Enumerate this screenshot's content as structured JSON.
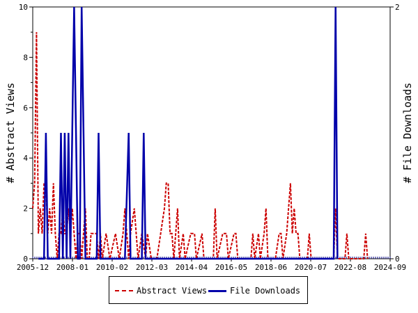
{
  "chart_data": {
    "type": "line",
    "x_tick_labels": [
      "2005-12",
      "2008-01",
      "2010-02",
      "2012-03",
      "2014-04",
      "2016-05",
      "2018-06",
      "2020-07",
      "2022-08",
      "2024-09"
    ],
    "y_left": {
      "label": "# Abstract Views",
      "range": [
        0,
        10
      ],
      "ticks": [
        "0",
        "2",
        "4",
        "6",
        "8",
        "10"
      ]
    },
    "y_right": {
      "label": "# File Downloads",
      "range": [
        0,
        2
      ],
      "ticks": [
        "0",
        "2"
      ]
    },
    "grid": false,
    "legend_placement": "bottom",
    "series": [
      {
        "name": "Abstract Views",
        "axis": "left",
        "color": "#cc0000",
        "style": "dashed",
        "points": [
          [
            2005.9,
            2
          ],
          [
            2006.0,
            3
          ],
          [
            2006.1,
            9
          ],
          [
            2006.2,
            1
          ],
          [
            2006.3,
            2
          ],
          [
            2006.4,
            1
          ],
          [
            2006.5,
            3
          ],
          [
            2006.6,
            3
          ],
          [
            2006.7,
            1
          ],
          [
            2006.8,
            2
          ],
          [
            2006.9,
            1
          ],
          [
            2007.0,
            3
          ],
          [
            2007.1,
            1
          ],
          [
            2007.2,
            0
          ],
          [
            2007.3,
            1
          ],
          [
            2007.4,
            1
          ],
          [
            2007.5,
            2
          ],
          [
            2007.6,
            1
          ],
          [
            2007.7,
            1
          ],
          [
            2007.8,
            2
          ],
          [
            2007.9,
            1
          ],
          [
            2008.0,
            2
          ],
          [
            2008.1,
            1
          ],
          [
            2008.2,
            0
          ],
          [
            2008.3,
            1
          ],
          [
            2008.4,
            1
          ],
          [
            2008.5,
            0
          ],
          [
            2008.6,
            1
          ],
          [
            2008.7,
            2
          ],
          [
            2008.8,
            0
          ],
          [
            2008.9,
            0
          ],
          [
            2009.0,
            1
          ],
          [
            2009.1,
            1
          ],
          [
            2009.2,
            1
          ],
          [
            2009.3,
            1
          ],
          [
            2009.4,
            0
          ],
          [
            2009.5,
            1
          ],
          [
            2009.6,
            0
          ],
          [
            2009.8,
            1
          ],
          [
            2010.0,
            0
          ],
          [
            2010.3,
            1
          ],
          [
            2010.5,
            0
          ],
          [
            2010.7,
            1
          ],
          [
            2010.8,
            2
          ],
          [
            2010.9,
            1
          ],
          [
            2011.0,
            0
          ],
          [
            2011.1,
            1
          ],
          [
            2011.3,
            2
          ],
          [
            2011.5,
            0
          ],
          [
            2011.7,
            1
          ],
          [
            2011.9,
            0
          ],
          [
            2012.0,
            1
          ],
          [
            2012.2,
            0
          ],
          [
            2012.5,
            0
          ],
          [
            2012.7,
            1
          ],
          [
            2012.9,
            2
          ],
          [
            2013.0,
            3
          ],
          [
            2013.1,
            3
          ],
          [
            2013.2,
            1
          ],
          [
            2013.3,
            1
          ],
          [
            2013.4,
            0
          ],
          [
            2013.5,
            1
          ],
          [
            2013.6,
            2
          ],
          [
            2013.7,
            0
          ],
          [
            2013.9,
            1
          ],
          [
            2014.0,
            0
          ],
          [
            2014.3,
            1
          ],
          [
            2014.5,
            1
          ],
          [
            2014.6,
            0
          ],
          [
            2014.9,
            1
          ],
          [
            2015.0,
            0
          ],
          [
            2015.5,
            0
          ],
          [
            2015.6,
            2
          ],
          [
            2015.7,
            0
          ],
          [
            2016.0,
            1
          ],
          [
            2016.2,
            1
          ],
          [
            2016.3,
            0
          ],
          [
            2016.6,
            1
          ],
          [
            2016.7,
            1
          ],
          [
            2016.8,
            0
          ],
          [
            2017.0,
            0
          ],
          [
            2017.5,
            0
          ],
          [
            2017.6,
            1
          ],
          [
            2017.7,
            0
          ],
          [
            2017.9,
            1
          ],
          [
            2018.0,
            0
          ],
          [
            2018.2,
            1
          ],
          [
            2018.3,
            2
          ],
          [
            2018.4,
            0
          ],
          [
            2018.8,
            0
          ],
          [
            2019.0,
            1
          ],
          [
            2019.1,
            1
          ],
          [
            2019.2,
            0
          ],
          [
            2019.4,
            1
          ],
          [
            2019.5,
            2
          ],
          [
            2019.6,
            3
          ],
          [
            2019.7,
            1
          ],
          [
            2019.8,
            2
          ],
          [
            2019.9,
            1
          ],
          [
            2020.0,
            1
          ],
          [
            2020.1,
            0
          ],
          [
            2020.5,
            0
          ],
          [
            2020.6,
            1
          ],
          [
            2020.7,
            0
          ],
          [
            2021.0,
            0
          ],
          [
            2021.9,
            0
          ],
          [
            2022.0,
            2
          ],
          [
            2022.1,
            0
          ],
          [
            2022.5,
            0
          ],
          [
            2022.6,
            1
          ],
          [
            2022.7,
            0
          ],
          [
            2023.5,
            0
          ],
          [
            2023.6,
            1
          ],
          [
            2023.7,
            0
          ]
        ]
      },
      {
        "name": "File Downloads",
        "axis": "right",
        "color": "#0000aa",
        "style": "solid",
        "points": [
          [
            2006.2,
            0
          ],
          [
            2006.3,
            0
          ],
          [
            2006.5,
            0
          ],
          [
            2006.6,
            1
          ],
          [
            2006.7,
            0
          ],
          [
            2006.9,
            0
          ],
          [
            2007.0,
            0
          ],
          [
            2007.1,
            0
          ],
          [
            2007.2,
            0
          ],
          [
            2007.3,
            0
          ],
          [
            2007.4,
            1
          ],
          [
            2007.5,
            0
          ],
          [
            2007.6,
            1
          ],
          [
            2007.7,
            0
          ],
          [
            2007.8,
            1
          ],
          [
            2007.9,
            0
          ],
          [
            2008.0,
            1
          ],
          [
            2008.1,
            2
          ],
          [
            2008.2,
            1
          ],
          [
            2008.3,
            0
          ],
          [
            2008.4,
            0
          ],
          [
            2008.5,
            2
          ],
          [
            2008.6,
            1
          ],
          [
            2008.7,
            0
          ],
          [
            2008.8,
            0
          ],
          [
            2009.0,
            0
          ],
          [
            2009.1,
            0
          ],
          [
            2009.2,
            0
          ],
          [
            2009.3,
            0
          ],
          [
            2009.4,
            1
          ],
          [
            2009.5,
            0
          ],
          [
            2010.0,
            0
          ],
          [
            2010.3,
            0
          ],
          [
            2010.6,
            0
          ],
          [
            2010.8,
            0
          ],
          [
            2011.0,
            1
          ],
          [
            2011.1,
            0
          ],
          [
            2011.3,
            0
          ],
          [
            2011.5,
            0
          ],
          [
            2011.7,
            0
          ],
          [
            2011.8,
            1
          ],
          [
            2011.9,
            0
          ],
          [
            2012.0,
            0
          ],
          [
            2021.9,
            0
          ],
          [
            2022.0,
            2
          ],
          [
            2022.1,
            0
          ]
        ]
      }
    ],
    "x_range": [
      2005.9,
      2024.9
    ]
  }
}
